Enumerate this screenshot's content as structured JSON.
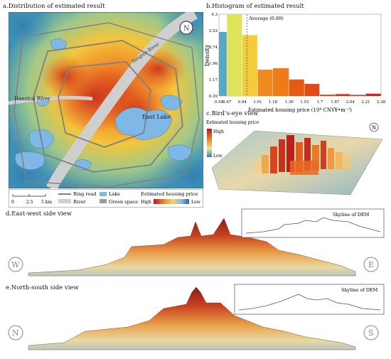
{
  "panels": {
    "a_title": "a.Distribution of estimated result",
    "b_title": "b.Histogram of estimated result",
    "c_title": "c.Bird’s-eye view",
    "d_title": "d.East-west side view",
    "e_title": "e.North-south side view"
  },
  "map": {
    "north_label": "N",
    "river_label": "Yangtze River",
    "han_label": "Hanshui River",
    "lake_label": "East Lake",
    "scale_ticks": [
      "0",
      "2.5",
      "5 km"
    ],
    "legend": {
      "ring_road": "Ring road",
      "river": "River",
      "lake": "Lake",
      "green_space": "Green space",
      "price_title": "Estimated housing price",
      "high": "High",
      "low": "Low"
    }
  },
  "birdseye": {
    "legend_title": "Estimated housing price",
    "high": "High",
    "low": "Low",
    "north_label": "N"
  },
  "side_views": {
    "ew_inset_title": "Skyline of DEM",
    "ns_inset_title": "Skyline of DEM",
    "west": "W",
    "east": "E",
    "north": "N",
    "south": "S"
  },
  "colors": {
    "high": "#b2182b",
    "mid": "#f4c63d",
    "low": "#4393c3",
    "lake": "#7fb8e6",
    "road": "#8a8a8a"
  },
  "chart_data": {
    "type": "bar",
    "title": "b.Histogram of estimated result",
    "xlabel": "Estimated housing price (10⁴ CNY¥•m⁻²)",
    "ylabel": "Density",
    "x_ticks": [
      "0.58",
      "0.67",
      "0.84",
      "1.01",
      "1.18",
      "1.36",
      "1.53",
      "1.7",
      "1.87",
      "2.04",
      "2.21",
      "2.38"
    ],
    "y_ticks": [
      "0.39",
      "1.17",
      "1.96",
      "2.74",
      "3.52",
      "4.3"
    ],
    "ylim": [
      0.39,
      4.3
    ],
    "bins": [
      {
        "from": 0.58,
        "to": 0.67,
        "value": 3.45,
        "color": "#5aa6c4"
      },
      {
        "from": 0.67,
        "to": 0.84,
        "value": 4.3,
        "color": "#dde35a"
      },
      {
        "from": 0.84,
        "to": 1.01,
        "value": 3.3,
        "color": "#f2cc3a"
      },
      {
        "from": 1.01,
        "to": 1.18,
        "value": 1.65,
        "color": "#f08a1e"
      },
      {
        "from": 1.18,
        "to": 1.36,
        "value": 1.72,
        "color": "#ef7a18"
      },
      {
        "from": 1.36,
        "to": 1.53,
        "value": 1.18,
        "color": "#e65a14"
      },
      {
        "from": 1.53,
        "to": 1.7,
        "value": 0.97,
        "color": "#e04a14"
      },
      {
        "from": 1.7,
        "to": 1.87,
        "value": 0.45,
        "color": "#d83a16"
      },
      {
        "from": 1.87,
        "to": 2.04,
        "value": 0.48,
        "color": "#d42f18"
      },
      {
        "from": 2.04,
        "to": 2.21,
        "value": 0.44,
        "color": "#cf2a1a"
      },
      {
        "from": 2.21,
        "to": 2.38,
        "value": 0.5,
        "color": "#c9241c"
      }
    ],
    "average_label": "Average (0.89)",
    "average": 0.89
  }
}
